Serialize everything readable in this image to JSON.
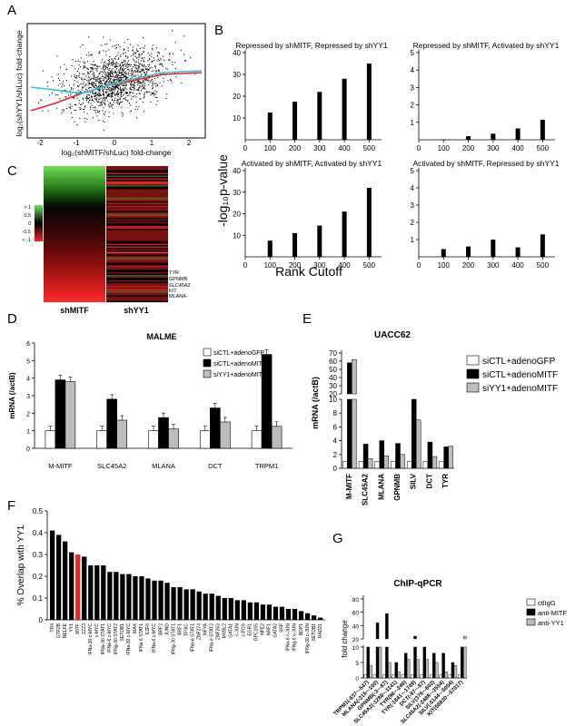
{
  "panel_letters": {
    "A": "A",
    "B": "B",
    "C": "C",
    "D": "D",
    "E": "E",
    "F": "F",
    "G": "G"
  },
  "colors": {
    "black": "#000000",
    "red": "#e8262a",
    "gray": "#bdbdbd",
    "white": "#ffffff",
    "cyan": "#27c6dd",
    "green": "#3cc83c",
    "darkred": "#b41414"
  },
  "panelA": {
    "xlabel": "log₂(shMITF/shLuc) fold-change",
    "ylabel": "log₂(shYY1/shLuc) fold-change",
    "xticks": [
      "-2",
      "-1",
      "0",
      "1",
      "2"
    ]
  },
  "panelC": {
    "legend_ticks": [
      "> 1",
      "0.5",
      "0",
      "-0.5",
      "< -1"
    ],
    "col_labels": [
      "shMITF",
      "shYY1"
    ],
    "gene_labels": [
      "TYR",
      "GPNMB",
      "SLC45A2",
      "KIT",
      "MLANA"
    ]
  },
  "chart_data": [
    {
      "type": "bar",
      "title": "Repressed by shMITF, Repressed by shYY1",
      "categories": [
        "100",
        "200",
        "300",
        "400",
        "500"
      ],
      "values": [
        12.5,
        17.5,
        22,
        28,
        35
      ],
      "xticks": [
        "0",
        "100",
        "200",
        "300",
        "400",
        "500"
      ],
      "yticks": [
        "10",
        "20",
        "30",
        "40"
      ],
      "ylim": [
        0,
        40
      ],
      "xlim": [
        0,
        550
      ]
    },
    {
      "type": "bar",
      "title": "Repressed by shMITF, Activated by shYY1",
      "categories": [
        "100",
        "200",
        "300",
        "400",
        "500"
      ],
      "values": [
        0.02,
        0.2,
        0.35,
        0.65,
        1.15
      ],
      "xticks": [
        "0",
        "100",
        "200",
        "300",
        "400",
        "500"
      ],
      "yticks": [
        "1",
        "2",
        "3",
        "4",
        "5"
      ],
      "ylim": [
        0,
        5
      ],
      "xlim": [
        0,
        550
      ]
    },
    {
      "type": "bar",
      "title": "Activated by shMITF, Activated by shYY1",
      "categories": [
        "100",
        "200",
        "300",
        "400",
        "500"
      ],
      "values": [
        7.5,
        11,
        14.5,
        21,
        32
      ],
      "xticks": [
        "0",
        "100",
        "200",
        "300",
        "400",
        "500"
      ],
      "yticks": [
        "10",
        "20",
        "30",
        "40"
      ],
      "ylim": [
        0,
        40
      ],
      "xlim": [
        0,
        550
      ],
      "ylabel": "-log₁₀p-value",
      "xlabel": "Rank Cutoff"
    },
    {
      "type": "bar",
      "title": "Activated by shMITF, Repressed by shYY1",
      "categories": [
        "100",
        "200",
        "300",
        "400",
        "500"
      ],
      "values": [
        0.45,
        0.6,
        1.0,
        0.55,
        1.3
      ],
      "xticks": [
        "0",
        "100",
        "200",
        "300",
        "400",
        "500"
      ],
      "yticks": [
        "1",
        "2",
        "3",
        "4",
        "5"
      ],
      "ylim": [
        0,
        5
      ],
      "xlim": [
        0,
        550
      ]
    },
    {
      "type": "bar",
      "title": "MALME",
      "ylabel": "mRNA (/actB)",
      "categories": [
        "M-MITF",
        "SLC45A2",
        "MLANA",
        "DCT",
        "TRPM1"
      ],
      "yticks": [
        "0",
        "1",
        "2",
        "3",
        "4",
        "5",
        "6"
      ],
      "ylim": [
        0,
        6
      ],
      "series": [
        {
          "name": "siCTL+adenoGFP",
          "values": [
            1.0,
            1.0,
            1.0,
            1.0,
            1.0
          ]
        },
        {
          "name": "siCTL+adenoMITF",
          "values": [
            3.9,
            2.8,
            1.75,
            2.3,
            5.35
          ]
        },
        {
          "name": "siYY1+adenoMITF",
          "values": [
            3.8,
            1.6,
            1.1,
            1.5,
            1.25
          ]
        }
      ]
    },
    {
      "type": "bar",
      "title": "UACC62",
      "ylabel": "mRNA (/actB)",
      "categories": [
        "M-MITF",
        "SLC45A2",
        "MLANA",
        "GPNMB",
        "SILV",
        "DCT",
        "TYR"
      ],
      "yticks_low": [
        "0",
        "2",
        "4",
        "6",
        "8",
        "10"
      ],
      "yticks_high": [
        "20",
        "30",
        "40",
        "50",
        "60",
        "70"
      ],
      "series": [
        {
          "name": "siCTL+adenoGFP",
          "values": [
            1.0,
            1.0,
            1.0,
            1.0,
            1.0,
            1.0,
            1.0
          ]
        },
        {
          "name": "siCTL+adenoMITF",
          "values": [
            58,
            3.5,
            4.0,
            3.6,
            17,
            3.8,
            3.1
          ]
        },
        {
          "name": "siYY1+adenoMITF",
          "values": [
            62,
            1.4,
            1.8,
            2.0,
            7.0,
            1.7,
            3.2
          ]
        }
      ]
    },
    {
      "type": "bar",
      "ylabel": "% Overlap with YY1",
      "categories": [
        "TR4",
        "GTF2B",
        "NELFE",
        "YY1",
        "MITF",
        "ZZZ3",
        "IFNa-30 c-MYC",
        "c-MYC",
        "IFNa-30 STAT1",
        "IFNa-6 c-MYC",
        "IFNg-30 STAT2",
        "SETDB1",
        "IFNa-30 c-MYC",
        "MAX",
        "IFNa-6 STAT1",
        "E2F6",
        "IFNa-6 c-MYC",
        "BRF2",
        "JUND",
        "IFNg-30 STAT1",
        "BRF1",
        "TFIIIC",
        "IFNa-6 STAT1",
        "ZNF274",
        "NFYA",
        "IFNa-6 STAT2",
        "ZNF263",
        "MYBL2",
        "GATA1",
        "c-JUN",
        "c-FOS",
        "EGR1",
        "RPC155",
        "NFE2",
        "NRF1",
        "GATA2",
        "SRF",
        "IFNa-6 c-JUN",
        "IFNg-6 c-JUN",
        "BDP1",
        "IFNg-30 c-JUN",
        "SETDB1",
        "RAD21"
      ],
      "values": [
        0.41,
        0.39,
        0.36,
        0.31,
        0.3,
        0.29,
        0.25,
        0.25,
        0.25,
        0.22,
        0.22,
        0.21,
        0.21,
        0.2,
        0.2,
        0.19,
        0.18,
        0.18,
        0.17,
        0.15,
        0.15,
        0.14,
        0.14,
        0.13,
        0.12,
        0.12,
        0.11,
        0.1,
        0.1,
        0.09,
        0.09,
        0.08,
        0.08,
        0.07,
        0.07,
        0.06,
        0.06,
        0.05,
        0.05,
        0.04,
        0.03,
        0.02,
        0.01
      ],
      "highlight_index": 4,
      "yticks": [
        "0",
        "0.1",
        "0.2",
        "0.3",
        "0.4",
        "0.5"
      ],
      "ylim": [
        0,
        0.5
      ]
    },
    {
      "type": "bar",
      "title": "ChIP-qPCR",
      "ylabel": "fold change",
      "categories": [
        "TRPM1(-637~-547)",
        "MLANA(-215~-100)",
        "GPNMB(-3~-87)",
        "SLC45A2(-1288~-1141)",
        "TYR(96~-246)",
        "TYR(-1841~-1749)",
        "DCT(-97~-87)",
        "SILV(379~-602)",
        "SLC45A2(-2488~-2554)",
        "SILV(-5144~-5054)",
        "KIT(56830~-57017)"
      ],
      "yticks_low": [
        "0",
        "5",
        "10"
      ],
      "yticks_high": [
        "20",
        "40",
        "60",
        "80"
      ],
      "series": [
        {
          "name": "ctlIgG",
          "values": [
            1,
            1,
            1,
            1,
            1,
            1,
            1,
            1,
            1,
            1,
            1
          ]
        },
        {
          "name": "anti-MITF",
          "values": [
            16,
            44,
            58,
            5,
            8,
            24,
            10,
            8,
            8,
            5,
            20
          ]
        },
        {
          "name": "anti-YY1",
          "values": [
            4,
            20,
            5,
            2,
            6,
            6,
            6,
            5,
            2,
            4,
            24
          ]
        }
      ]
    }
  ]
}
